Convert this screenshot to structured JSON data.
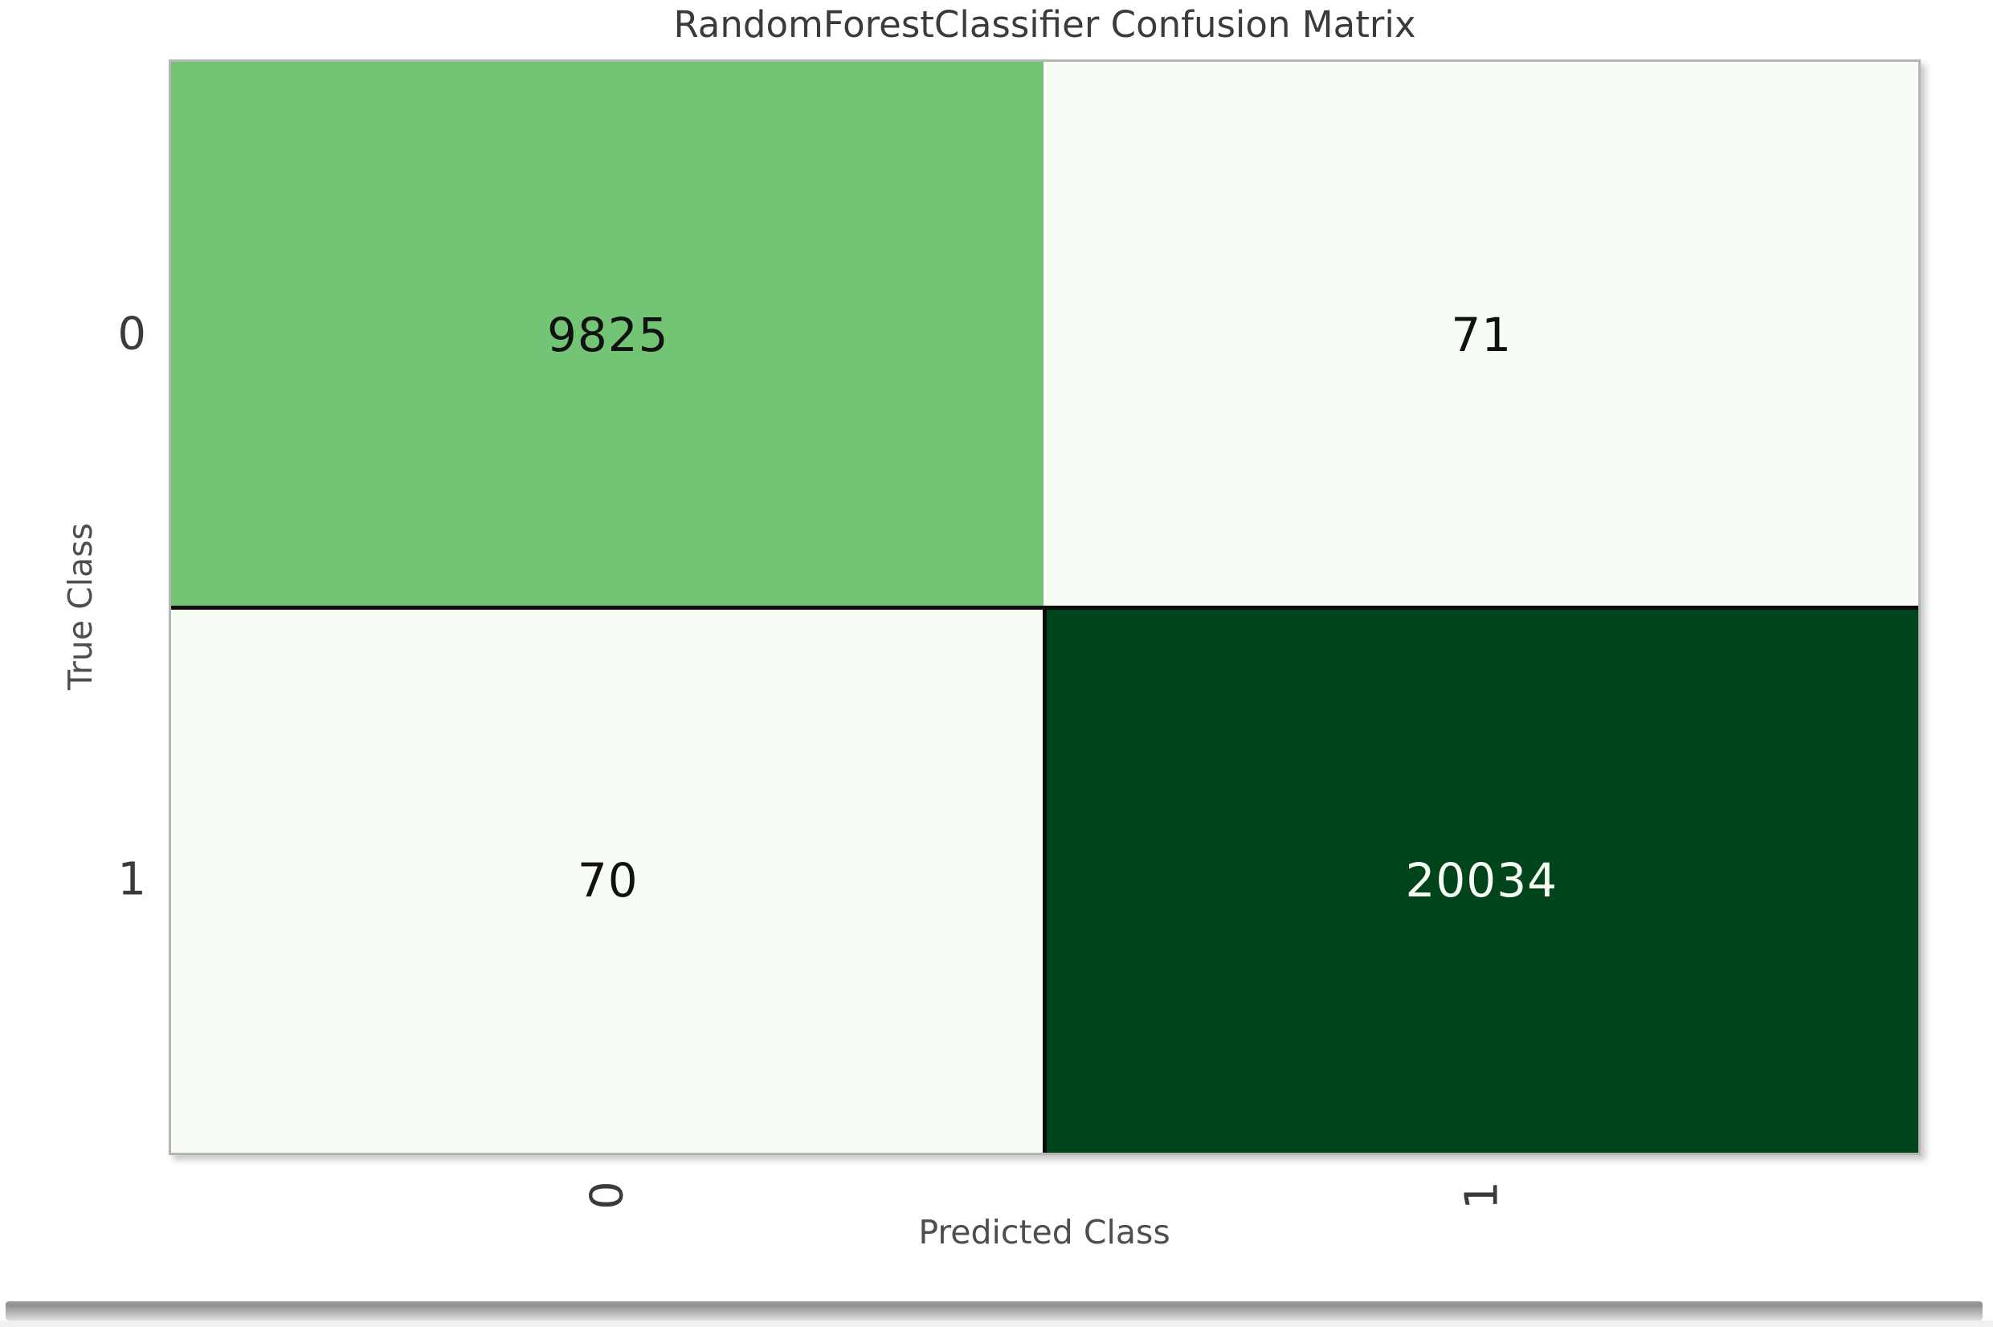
{
  "chart_data": {
    "type": "heatmap",
    "title": "RandomForestClassifier Confusion Matrix",
    "xlabel": "Predicted Class",
    "ylabel": "True Class",
    "x_tick_labels": [
      "0",
      "1"
    ],
    "y_tick_labels": [
      "0",
      "1"
    ],
    "matrix": [
      [
        9825,
        71
      ],
      [
        70,
        20034
      ]
    ],
    "cells": [
      {
        "true_class": "0",
        "predicted_class": "0",
        "value": "9825",
        "bg": "#74c476",
        "fg": "#111111"
      },
      {
        "true_class": "0",
        "predicted_class": "1",
        "value": "71",
        "bg": "#f7fcf5",
        "fg": "#111111"
      },
      {
        "true_class": "1",
        "predicted_class": "0",
        "value": "70",
        "bg": "#f7fcf5",
        "fg": "#111111"
      },
      {
        "true_class": "1",
        "predicted_class": "1",
        "value": "20034",
        "bg": "#00441b",
        "fg": "#f7fcf5"
      }
    ],
    "colors": {
      "cmap_low": "#f7fcf5",
      "cmap_mid": "#74c476",
      "cmap_high": "#00441b",
      "grid_line_black": "#0c0c0c",
      "grid_line_white": "#ffffff",
      "frame_gray": "#b5b5b5",
      "title_text": "#3b3b3b",
      "axis_label_text": "#4e4e4e"
    },
    "legend": "none",
    "grid": "off",
    "x_tick_rotation_deg": 90,
    "layout": {
      "rows": 2,
      "cols": 2
    }
  }
}
